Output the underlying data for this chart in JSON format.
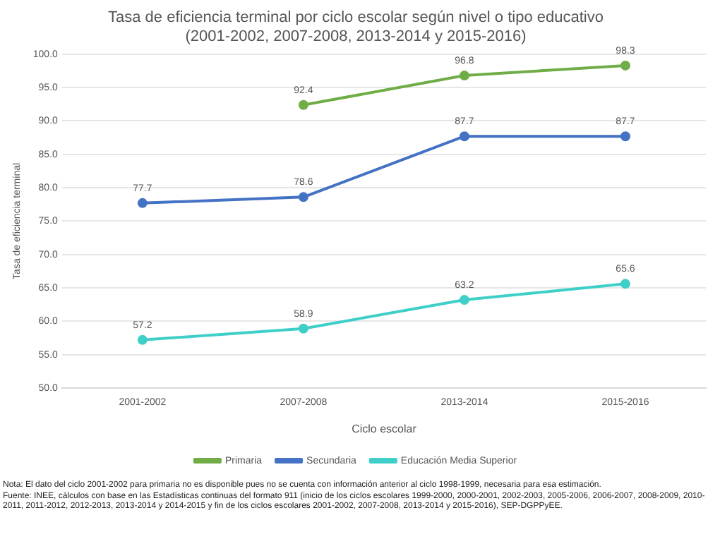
{
  "chart_data": {
    "type": "line",
    "title": "Tasa de eficiencia terminal por ciclo escolar según nivel o tipo educativo",
    "subtitle": "(2001-2002, 2007-2008, 2013-2014 y 2015-2016)",
    "xlabel": "Ciclo escolar",
    "ylabel": "Tasa de eficiencia terminal",
    "categories": [
      "2001-2002",
      "2007-2008",
      "2013-2014",
      "2015-2016"
    ],
    "series": [
      {
        "name": "Primaria",
        "color": "#70ad47",
        "values": [
          null,
          92.4,
          96.8,
          98.3
        ]
      },
      {
        "name": "Secundaria",
        "color": "#4472c4",
        "values": [
          77.7,
          78.6,
          87.7,
          87.7
        ]
      },
      {
        "name": "Educación Media Superior",
        "color": "#3fcfc9",
        "values": [
          57.2,
          58.9,
          63.2,
          65.6
        ]
      }
    ],
    "ylim": [
      50,
      100
    ],
    "yticks": [
      {
        "value": 50,
        "label": "50.0"
      },
      {
        "value": 55,
        "label": "55.0"
      },
      {
        "value": 60,
        "label": "60.0"
      },
      {
        "value": 65,
        "label": "65.0"
      },
      {
        "value": 70,
        "label": "70.0"
      },
      {
        "value": 75,
        "label": "75.0"
      },
      {
        "value": 80,
        "label": "80.0"
      },
      {
        "value": 85,
        "label": "85.0"
      },
      {
        "value": 90,
        "label": "90.0"
      },
      {
        "value": 95,
        "label": "95.0"
      },
      {
        "value": 100,
        "label": "100.0"
      }
    ],
    "grid": "y",
    "legend": "bottom",
    "marker": "circle",
    "line_style": "solid",
    "data_labels": true,
    "annotations": [
      "Nota: El dato del ciclo 2001-2002 para primaria no es disponible pues no se cuenta con información anterior al ciclo 1998-1999, necesaria para esa estimación.",
      "Fuente: INEE, cálculos con base en las Estadísticas continuas del formato 911 (inicio de los ciclos escolares 1999-2000, 2000-2001, 2002-2003, 2005-2006, 2006-2007, 2008-2009, 2010-2011, 2011-2012, 2012-2013, 2013-2014 y 2014-2015 y fin de los ciclos escolares 2001-2002, 2007-2008, 2013-2014 y 2015-2016), SEP-DGPPyEE."
    ]
  }
}
